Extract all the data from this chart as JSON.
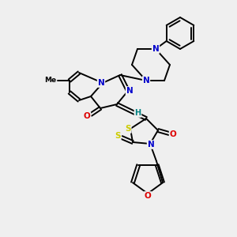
{
  "bg_color": "#efefef",
  "bond_color": "#000000",
  "bond_width": 1.4,
  "atom_colors": {
    "N": "#0000cc",
    "O": "#dd0000",
    "S": "#cccc00",
    "H": "#008080",
    "C": "#000000"
  },
  "figsize": [
    3.0,
    3.0
  ],
  "dpi": 100
}
